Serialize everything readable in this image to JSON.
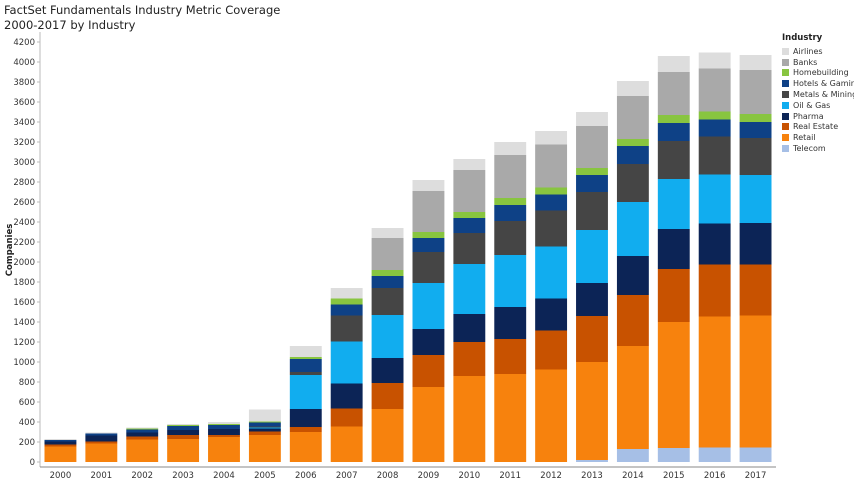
{
  "chart_data": {
    "type": "bar",
    "stacked": true,
    "title": "FactSet Fundamentals Industry Metric Coverage",
    "subtitle": "2000-2017 by Industry",
    "ylabel": "Companies",
    "xlabel": "",
    "ylim": [
      0,
      4300
    ],
    "yticks": [
      0,
      200,
      400,
      600,
      800,
      1000,
      1200,
      1400,
      1600,
      1800,
      2000,
      2200,
      2400,
      2600,
      2800,
      3000,
      3200,
      3400,
      3600,
      3800,
      4000,
      4200
    ],
    "grid": false,
    "legend_title": "Industry",
    "legend_position": "top-right",
    "categories": [
      "2000",
      "2001",
      "2002",
      "2003",
      "2004",
      "2005",
      "2006",
      "2007",
      "2008",
      "2009",
      "2010",
      "2011",
      "2012",
      "2013",
      "2014",
      "2015",
      "2016",
      "2017"
    ],
    "series": [
      {
        "name": "Telecom",
        "color": "#a6bfe6",
        "values": [
          0,
          0,
          0,
          0,
          0,
          0,
          0,
          0,
          0,
          0,
          0,
          0,
          0,
          20,
          130,
          140,
          145,
          145
        ]
      },
      {
        "name": "Retail",
        "color": "#f7820d",
        "values": [
          155,
          185,
          225,
          230,
          250,
          270,
          300,
          355,
          530,
          750,
          860,
          880,
          925,
          980,
          1030,
          1260,
          1310,
          1320
        ]
      },
      {
        "name": "Real Estate",
        "color": "#c85200",
        "values": [
          20,
          20,
          30,
          40,
          20,
          35,
          50,
          180,
          260,
          320,
          340,
          350,
          390,
          460,
          510,
          530,
          520,
          510
        ]
      },
      {
        "name": "Pharma",
        "color": "#0c2456",
        "values": [
          30,
          60,
          40,
          50,
          60,
          30,
          180,
          250,
          250,
          260,
          280,
          320,
          320,
          330,
          390,
          400,
          410,
          415
        ]
      },
      {
        "name": "Oil & Gas",
        "color": "#11adef",
        "values": [
          0,
          0,
          0,
          0,
          0,
          10,
          340,
          420,
          430,
          460,
          500,
          520,
          520,
          530,
          540,
          500,
          490,
          480
        ]
      },
      {
        "name": "Metals & Mining",
        "color": "#454545",
        "values": [
          0,
          0,
          0,
          0,
          0,
          10,
          30,
          260,
          270,
          310,
          310,
          340,
          360,
          380,
          380,
          380,
          380,
          370
        ]
      },
      {
        "name": "Hotels & Gaming",
        "color": "#0e4186",
        "values": [
          15,
          20,
          30,
          40,
          40,
          40,
          130,
          110,
          120,
          140,
          150,
          160,
          160,
          170,
          180,
          180,
          170,
          160
        ]
      },
      {
        "name": "Homebuilding",
        "color": "#88c540",
        "values": [
          0,
          0,
          10,
          10,
          10,
          10,
          20,
          60,
          60,
          60,
          60,
          70,
          70,
          70,
          70,
          80,
          80,
          80
        ]
      },
      {
        "name": "Banks",
        "color": "#a9a9a9",
        "values": [
          0,
          0,
          0,
          0,
          0,
          0,
          0,
          0,
          320,
          410,
          420,
          430,
          430,
          420,
          430,
          430,
          430,
          440
        ]
      },
      {
        "name": "Airlines",
        "color": "#dddddd",
        "values": [
          10,
          10,
          10,
          10,
          20,
          120,
          110,
          105,
          100,
          110,
          110,
          130,
          135,
          140,
          150,
          160,
          160,
          150
        ]
      }
    ]
  }
}
